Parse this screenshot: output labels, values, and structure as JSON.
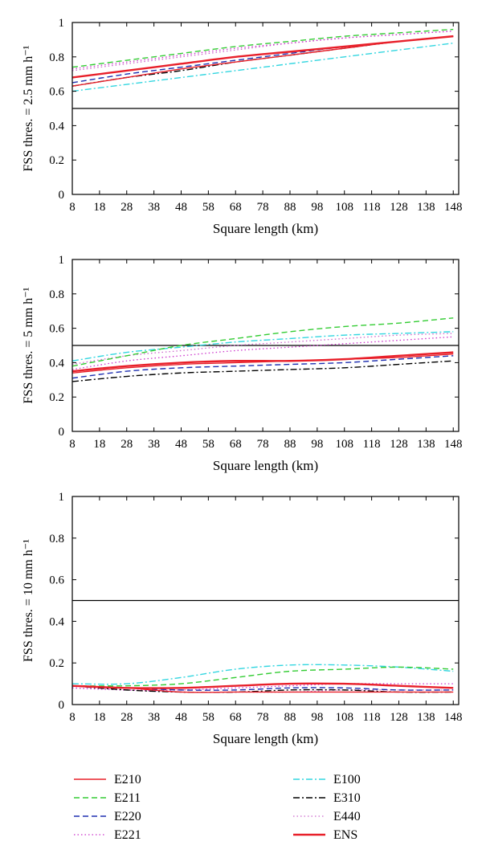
{
  "chart_data": [
    {
      "type": "line",
      "ylabel": "FSS thres. = 2.5 mm h⁻¹",
      "xlabel": "Square length (km)",
      "xlim": [
        8,
        150
      ],
      "ylim": [
        0,
        1
      ],
      "xticks": [
        8,
        18,
        28,
        38,
        48,
        58,
        68,
        78,
        88,
        98,
        108,
        118,
        128,
        138,
        148
      ],
      "yticks": [
        0,
        0.2,
        0.4,
        0.6,
        0.8,
        1
      ],
      "ytick_labels": [
        "0",
        "0.2",
        "0.4",
        "0.6",
        "0.8",
        "1"
      ],
      "reference_line": 0.5,
      "grid": false,
      "series": [
        {
          "name": "E210",
          "x": [
            8,
            28,
            48,
            68,
            88,
            108,
            128,
            148
          ],
          "y": [
            0.63,
            0.68,
            0.73,
            0.77,
            0.81,
            0.85,
            0.89,
            0.92
          ]
        },
        {
          "name": "E211",
          "x": [
            8,
            28,
            48,
            68,
            88,
            108,
            128,
            148
          ],
          "y": [
            0.74,
            0.78,
            0.82,
            0.86,
            0.89,
            0.92,
            0.94,
            0.96
          ]
        },
        {
          "name": "E220",
          "x": [
            8,
            28,
            48,
            68,
            88,
            108,
            128,
            148
          ],
          "y": [
            0.65,
            0.7,
            0.74,
            0.78,
            0.82,
            0.86,
            0.89,
            0.92
          ]
        },
        {
          "name": "E221",
          "x": [
            8,
            28,
            48,
            68,
            88,
            108,
            128,
            148
          ],
          "y": [
            0.73,
            0.77,
            0.81,
            0.85,
            0.88,
            0.91,
            0.93,
            0.95
          ]
        },
        {
          "name": "E100",
          "x": [
            8,
            28,
            48,
            68,
            88,
            108,
            128,
            148
          ],
          "y": [
            0.6,
            0.64,
            0.68,
            0.72,
            0.76,
            0.8,
            0.84,
            0.88
          ]
        },
        {
          "name": "E310",
          "x": [
            8,
            28,
            48,
            68,
            88,
            108,
            128,
            148
          ],
          "y": [
            0.63,
            0.68,
            0.72,
            0.77,
            0.81,
            0.85,
            0.89,
            0.92
          ]
        },
        {
          "name": "E440",
          "x": [
            8,
            28,
            48,
            68,
            88,
            108,
            128,
            148
          ],
          "y": [
            0.72,
            0.76,
            0.8,
            0.84,
            0.88,
            0.91,
            0.93,
            0.95
          ]
        },
        {
          "name": "ENS",
          "x": [
            8,
            28,
            48,
            68,
            88,
            108,
            128,
            148
          ],
          "y": [
            0.68,
            0.72,
            0.76,
            0.8,
            0.83,
            0.86,
            0.89,
            0.92
          ]
        }
      ]
    },
    {
      "type": "line",
      "ylabel": "FSS thres. = 5 mm h⁻¹",
      "xlabel": "Square length (km)",
      "xlim": [
        8,
        150
      ],
      "ylim": [
        0,
        1
      ],
      "xticks": [
        8,
        18,
        28,
        38,
        48,
        58,
        68,
        78,
        88,
        98,
        108,
        118,
        128,
        138,
        148
      ],
      "yticks": [
        0,
        0.2,
        0.4,
        0.6,
        0.8,
        1
      ],
      "ytick_labels": [
        "0",
        "0.2",
        "0.4",
        "0.6",
        "0.8",
        "1"
      ],
      "reference_line": 0.5,
      "grid": false,
      "series": [
        {
          "name": "E210",
          "x": [
            8,
            28,
            48,
            68,
            88,
            108,
            128,
            148
          ],
          "y": [
            0.34,
            0.37,
            0.39,
            0.4,
            0.41,
            0.42,
            0.43,
            0.45
          ]
        },
        {
          "name": "E211",
          "x": [
            8,
            28,
            48,
            68,
            88,
            108,
            128,
            148
          ],
          "y": [
            0.38,
            0.44,
            0.5,
            0.54,
            0.58,
            0.61,
            0.63,
            0.66
          ]
        },
        {
          "name": "E220",
          "x": [
            8,
            28,
            48,
            68,
            88,
            108,
            128,
            148
          ],
          "y": [
            0.31,
            0.35,
            0.37,
            0.38,
            0.39,
            0.4,
            0.42,
            0.44
          ]
        },
        {
          "name": "E221",
          "x": [
            8,
            28,
            48,
            68,
            88,
            108,
            128,
            148
          ],
          "y": [
            0.36,
            0.41,
            0.44,
            0.47,
            0.49,
            0.51,
            0.53,
            0.55
          ]
        },
        {
          "name": "E100",
          "x": [
            8,
            28,
            48,
            68,
            88,
            108,
            128,
            148
          ],
          "y": [
            0.41,
            0.46,
            0.49,
            0.52,
            0.54,
            0.56,
            0.57,
            0.58
          ]
        },
        {
          "name": "E310",
          "x": [
            8,
            28,
            48,
            68,
            88,
            108,
            128,
            148
          ],
          "y": [
            0.29,
            0.32,
            0.34,
            0.35,
            0.36,
            0.37,
            0.39,
            0.41
          ]
        },
        {
          "name": "E440",
          "x": [
            8,
            28,
            48,
            68,
            88,
            108,
            128,
            148
          ],
          "y": [
            0.39,
            0.44,
            0.47,
            0.5,
            0.52,
            0.54,
            0.56,
            0.57
          ]
        },
        {
          "name": "ENS",
          "x": [
            8,
            28,
            48,
            68,
            88,
            108,
            128,
            148
          ],
          "y": [
            0.35,
            0.38,
            0.4,
            0.41,
            0.41,
            0.42,
            0.44,
            0.46
          ]
        }
      ]
    },
    {
      "type": "line",
      "ylabel": "FSS thres. = 10 mm h⁻¹",
      "xlabel": "Square length (km)",
      "xlim": [
        8,
        150
      ],
      "ylim": [
        0,
        1
      ],
      "xticks": [
        8,
        18,
        28,
        38,
        48,
        58,
        68,
        78,
        88,
        98,
        108,
        118,
        128,
        138,
        148
      ],
      "yticks": [
        0,
        0.2,
        0.4,
        0.6,
        0.8,
        1
      ],
      "ytick_labels": [
        "0",
        "0.2",
        "0.4",
        "0.6",
        "0.8",
        "1"
      ],
      "reference_line": 0.5,
      "grid": false,
      "series": [
        {
          "name": "E210",
          "x": [
            8,
            28,
            48,
            68,
            88,
            108,
            128,
            148
          ],
          "y": [
            0.09,
            0.08,
            0.06,
            0.06,
            0.06,
            0.06,
            0.06,
            0.06
          ]
        },
        {
          "name": "E211",
          "x": [
            8,
            28,
            48,
            68,
            88,
            108,
            128,
            148
          ],
          "y": [
            0.09,
            0.09,
            0.1,
            0.13,
            0.16,
            0.17,
            0.18,
            0.17
          ]
        },
        {
          "name": "E220",
          "x": [
            8,
            28,
            48,
            68,
            88,
            108,
            128,
            148
          ],
          "y": [
            0.09,
            0.08,
            0.07,
            0.07,
            0.08,
            0.08,
            0.07,
            0.07
          ]
        },
        {
          "name": "E221",
          "x": [
            8,
            28,
            48,
            68,
            88,
            108,
            128,
            148
          ],
          "y": [
            0.08,
            0.07,
            0.07,
            0.08,
            0.09,
            0.1,
            0.1,
            0.1
          ]
        },
        {
          "name": "E100",
          "x": [
            8,
            28,
            48,
            68,
            88,
            108,
            128,
            148
          ],
          "y": [
            0.1,
            0.1,
            0.13,
            0.17,
            0.19,
            0.19,
            0.18,
            0.16
          ]
        },
        {
          "name": "E310",
          "x": [
            8,
            28,
            48,
            68,
            88,
            108,
            128,
            148
          ],
          "y": [
            0.09,
            0.07,
            0.06,
            0.06,
            0.07,
            0.07,
            0.06,
            0.06
          ]
        },
        {
          "name": "E440",
          "x": [
            8,
            28,
            48,
            68,
            88,
            108,
            128,
            148
          ],
          "y": [
            0.08,
            0.07,
            0.06,
            0.06,
            0.06,
            0.07,
            0.07,
            0.07
          ]
        },
        {
          "name": "ENS",
          "x": [
            8,
            28,
            48,
            68,
            88,
            108,
            128,
            148
          ],
          "y": [
            0.09,
            0.08,
            0.08,
            0.09,
            0.1,
            0.1,
            0.09,
            0.08
          ]
        }
      ]
    }
  ],
  "legend": {
    "placement": "bottom",
    "entries": [
      {
        "name": "E210",
        "color": "#e8202a",
        "dash": "solid"
      },
      {
        "name": "E211",
        "color": "#33cc33",
        "dash": "dashed"
      },
      {
        "name": "E220",
        "color": "#1e2fb0",
        "dash": "dashed"
      },
      {
        "name": "E221",
        "color": "#cc33cc",
        "dash": "dotted"
      },
      {
        "name": "E100",
        "color": "#33d6e0",
        "dash": "dashdot"
      },
      {
        "name": "E310",
        "color": "#000000",
        "dash": "dashdot"
      },
      {
        "name": "E440",
        "color": "#cc66cc",
        "dash": "dotted"
      },
      {
        "name": "ENS",
        "color": "#e8202a",
        "dash": "thick"
      }
    ]
  }
}
